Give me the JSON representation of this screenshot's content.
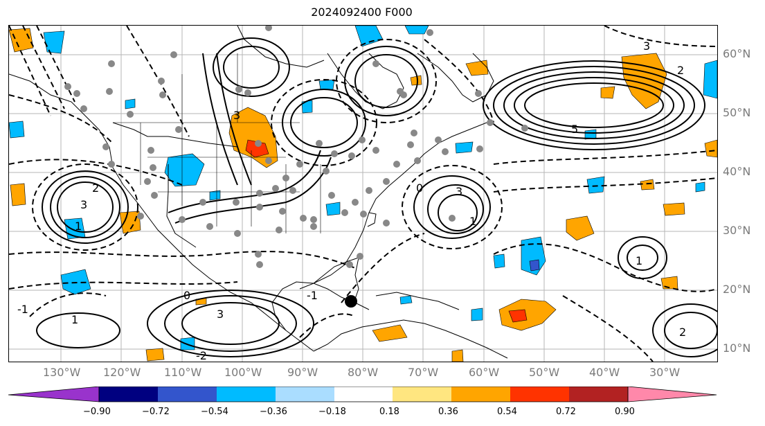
{
  "title": "2024092400 F000",
  "map": {
    "lon_labels": [
      "130°W",
      "120°W",
      "110°W",
      "100°W",
      "90°W",
      "80°W",
      "70°W",
      "60°W",
      "50°W",
      "40°W",
      "30°W"
    ],
    "lat_labels": [
      "60°N",
      "50°N",
      "40°N",
      "30°N",
      "20°N",
      "10°N"
    ],
    "contour_labels": [
      "3",
      "1",
      "2",
      "3",
      "1",
      "5",
      "3",
      "2",
      "1",
      "0",
      "-1",
      "-2",
      "3",
      "-1",
      "0",
      "1",
      "2",
      "3"
    ],
    "colors": {
      "coast": "#000000",
      "grid": "#b5b5b5",
      "obs_dot": "#888888"
    }
  },
  "colorbar": {
    "ticks": [
      "−0.90",
      "−0.72",
      "−0.54",
      "−0.36",
      "−0.18",
      "0.18",
      "0.36",
      "0.54",
      "0.72",
      "0.90"
    ],
    "colors": [
      "#9933cc",
      "#000080",
      "#3355cc",
      "#00bbff",
      "#aaddff",
      "#ffffff",
      "#ffe680",
      "#ffa500",
      "#ff3300",
      "#b22222",
      "#ff88aa"
    ]
  }
}
